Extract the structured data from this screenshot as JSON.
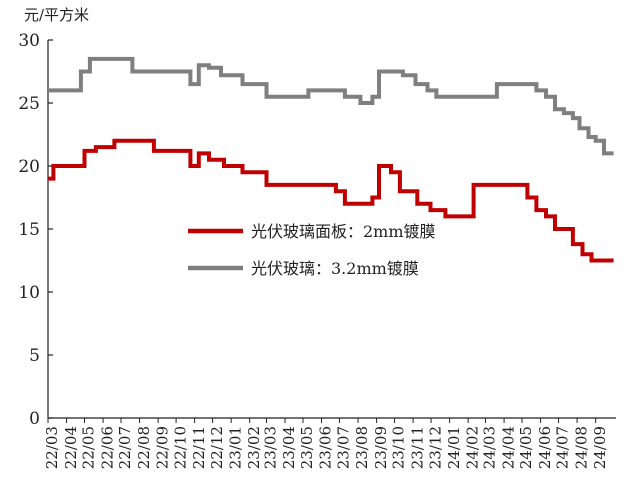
{
  "chart_data": {
    "type": "line",
    "unit_label": "元/平方米",
    "ylim": [
      0,
      30
    ],
    "yticks": [
      0,
      5,
      10,
      15,
      20,
      25,
      30
    ],
    "categories": [
      "22/03",
      "22/04",
      "22/05",
      "22/06",
      "22/07",
      "22/08",
      "22/09",
      "22/10",
      "22/11",
      "22/12",
      "23/01",
      "23/02",
      "23/03",
      "23/04",
      "23/05",
      "23/06",
      "23/07",
      "23/08",
      "23/09",
      "23/10",
      "23/11",
      "23/12",
      "24/01",
      "24/02",
      "24/03",
      "24/04",
      "24/05",
      "24/06",
      "24/07",
      "24/08",
      "24/09"
    ],
    "series": [
      {
        "name": "光伏玻璃面板：2mm镀膜",
        "color": "#c00000",
        "step": true,
        "x": [
          "2022-03-01",
          "2022-03-10",
          "2022-04-10",
          "2022-05-01",
          "2022-05-20",
          "2022-06-20",
          "2022-07-20",
          "2022-08-25",
          "2022-10-25",
          "2022-11-08",
          "2022-11-25",
          "2022-12-20",
          "2023-01-20",
          "2023-03-01",
          "2023-05-10",
          "2023-06-25",
          "2023-07-10",
          "2023-08-10",
          "2023-08-25",
          "2023-09-05",
          "2023-09-25",
          "2023-10-10",
          "2023-11-08",
          "2023-11-30",
          "2023-12-25",
          "2024-01-20",
          "2024-02-10",
          "2024-03-20",
          "2024-05-10",
          "2024-05-25",
          "2024-06-10",
          "2024-06-25",
          "2024-07-15",
          "2024-07-25",
          "2024-08-10",
          "2024-08-25",
          "2024-09-05",
          "2024-09-10",
          "2024-09-25"
        ],
        "values": [
          19.0,
          20.0,
          20.0,
          21.2,
          21.5,
          22.0,
          22.0,
          21.2,
          20.0,
          21.0,
          20.5,
          20.0,
          19.5,
          18.5,
          18.5,
          18.0,
          17.0,
          17.0,
          17.5,
          20.0,
          19.5,
          18.0,
          17.0,
          16.5,
          16.0,
          16.0,
          18.5,
          18.5,
          17.5,
          16.5,
          16.0,
          15.0,
          15.0,
          13.8,
          13.0,
          12.5,
          12.5,
          12.5,
          12.5
        ]
      },
      {
        "name": "光伏玻璃：3.2mm镀膜",
        "color": "#7f7f7f",
        "step": true,
        "x": [
          "2022-03-01",
          "2022-04-05",
          "2022-04-25",
          "2022-05-10",
          "2022-06-20",
          "2022-07-20",
          "2022-08-25",
          "2022-10-25",
          "2022-11-08",
          "2022-11-25",
          "2022-12-15",
          "2023-01-20",
          "2023-03-01",
          "2023-04-10",
          "2023-05-10",
          "2023-06-10",
          "2023-07-10",
          "2023-08-05",
          "2023-08-25",
          "2023-09-05",
          "2023-09-25",
          "2023-10-15",
          "2023-11-05",
          "2023-11-25",
          "2023-12-10",
          "2024-02-10",
          "2024-03-20",
          "2024-05-10",
          "2024-05-25",
          "2024-06-10",
          "2024-06-25",
          "2024-07-10",
          "2024-07-25",
          "2024-08-05",
          "2024-08-20",
          "2024-09-01",
          "2024-09-15"
        ],
        "values": [
          26.0,
          26.0,
          27.5,
          28.5,
          28.5,
          27.5,
          27.5,
          26.5,
          28.0,
          27.8,
          27.2,
          26.5,
          25.5,
          25.5,
          26.0,
          26.0,
          25.5,
          25.0,
          25.5,
          27.5,
          27.5,
          27.2,
          26.5,
          26.0,
          25.5,
          25.5,
          26.5,
          26.5,
          26.0,
          25.5,
          24.5,
          24.2,
          23.8,
          23.0,
          22.3,
          22.0,
          21.0
        ]
      }
    ],
    "legend": {
      "placement": "center-right",
      "entries": [
        {
          "label": "光伏玻璃面板：2mm镀膜",
          "color": "#c00000"
        },
        {
          "label": "光伏玻璃：3.2mm镀膜",
          "color": "#7f7f7f"
        }
      ]
    },
    "grid": false
  }
}
